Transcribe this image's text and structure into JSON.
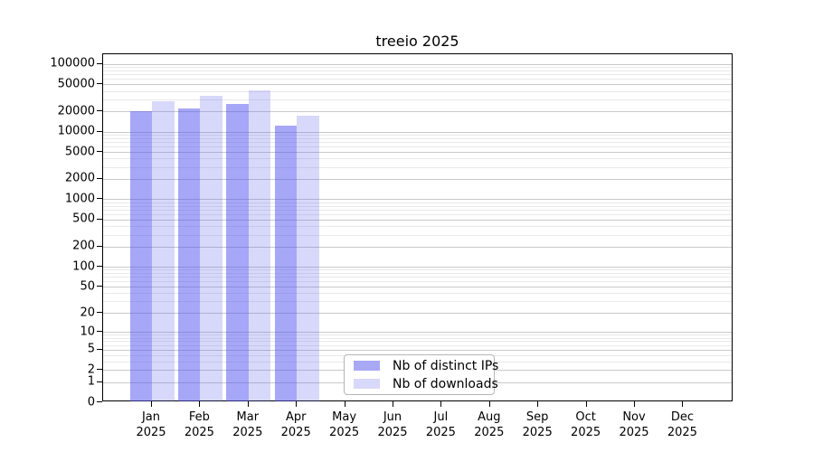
{
  "title": "treeio 2025",
  "colors": {
    "bar_ips_solid": "#a8a8f5",
    "bar_downloads_solid": "#d8d8fa",
    "bar_ips_rgba": "rgba(80,80,240,0.5)",
    "bar_downloads_rgba": "rgba(100,100,235,0.25)",
    "grid_major": "#c9c9c9",
    "grid_minor": "#e9e9e9",
    "axis": "#000000"
  },
  "legend": {
    "items": [
      {
        "label": "Nb of distinct IPs",
        "color_key": "bar_ips_solid"
      },
      {
        "label": "Nb of downloads",
        "color_key": "bar_downloads_solid"
      }
    ]
  },
  "chart_data": {
    "type": "bar",
    "title": "treeio 2025",
    "categories": [
      "Jan",
      "Feb",
      "Mar",
      "Apr",
      "May",
      "Jun",
      "Jul",
      "Aug",
      "Sep",
      "Oct",
      "Nov",
      "Dec"
    ],
    "year_label": "2025",
    "series": [
      {
        "name": "Nb of distinct IPs",
        "values": [
          19800,
          22300,
          25800,
          12100,
          null,
          null,
          null,
          null,
          null,
          null,
          null,
          null
        ]
      },
      {
        "name": "Nb of downloads",
        "values": [
          27900,
          33500,
          40500,
          17000,
          null,
          null,
          null,
          null,
          null,
          null,
          null,
          null
        ]
      }
    ],
    "yscale": "log10(value+1)",
    "yticks": [
      0,
      1,
      2,
      5,
      10,
      20,
      50,
      100,
      200,
      500,
      1000,
      2000,
      5000,
      10000,
      20000,
      50000,
      100000
    ],
    "yminor_mantissas": [
      3,
      4,
      6,
      7,
      8,
      9
    ],
    "ylim_top_value": 139000,
    "xlabel": "",
    "ylabel": "",
    "grid": true,
    "legend_position": "inside-bottom-center"
  }
}
